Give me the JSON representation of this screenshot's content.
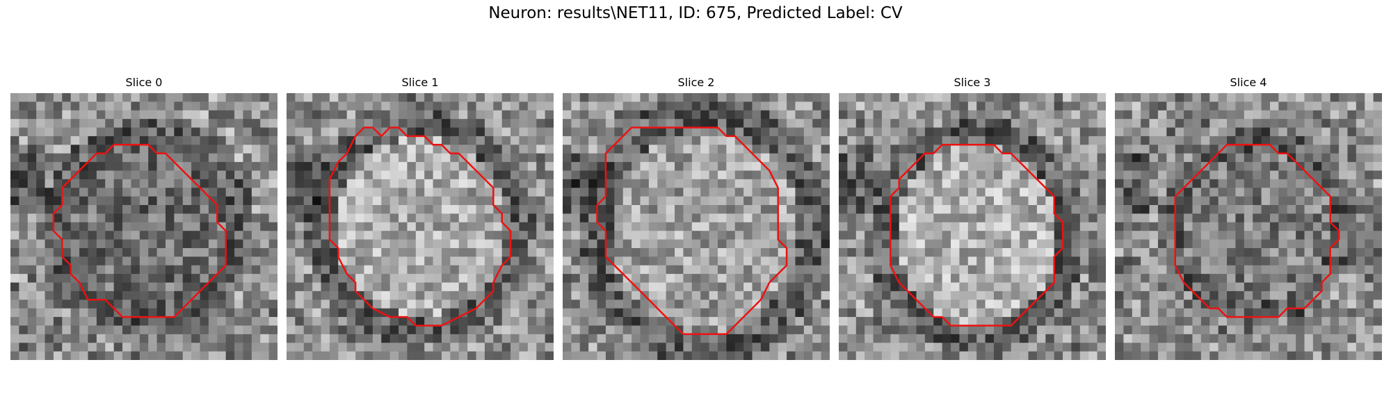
{
  "title": "Neuron: results\\NET11, ID: 675, Predicted Label: CV",
  "panels": [
    {
      "label": "Slice 0"
    },
    {
      "label": "Slice 1"
    },
    {
      "label": "Slice 2"
    },
    {
      "label": "Slice 3"
    },
    {
      "label": "Slice 4"
    }
  ],
  "contour_color": "#ee1111"
}
